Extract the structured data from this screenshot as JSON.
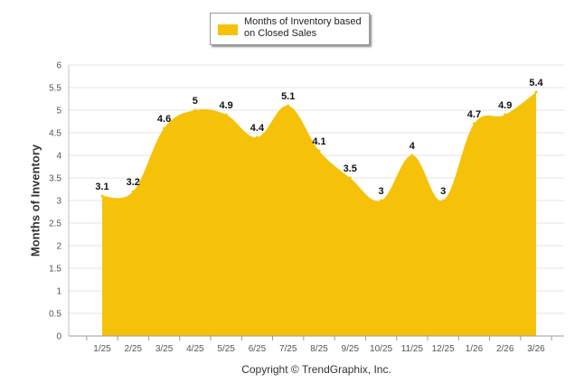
{
  "chart_data": {
    "type": "area",
    "title": "",
    "xlabel": "",
    "ylabel": "Months of Inventory",
    "ylim": [
      0,
      6
    ],
    "yticks": [
      "0",
      "0.5",
      "1",
      "1.5",
      "2",
      "2.5",
      "3",
      "3.5",
      "4",
      "4.5",
      "5",
      "5.5",
      "6"
    ],
    "categories": [
      "1/25",
      "2/25",
      "3/25",
      "4/25",
      "5/25",
      "6/25",
      "7/25",
      "8/25",
      "9/25",
      "10/25",
      "11/25",
      "12/25",
      "1/26",
      "2/26",
      "3/26"
    ],
    "series": [
      {
        "name": "Months of Inventory based on Closed Sales",
        "values": [
          3.1,
          3.2,
          4.6,
          5,
          4.9,
          4.4,
          5.1,
          4.1,
          3.5,
          3,
          4,
          3,
          4.7,
          4.9,
          5.4
        ],
        "labels": [
          "3.1",
          "3.2",
          "4.6",
          "5",
          "4.9",
          "4.4",
          "5.1",
          "4.1",
          "3.5",
          "3",
          "4",
          "3",
          "4.7",
          "4.9",
          "5.4"
        ],
        "color": "#f6c209"
      }
    ],
    "grid": true,
    "legend": "top-center"
  },
  "legend": {
    "label": "Months of Inventory based on Closed Sales",
    "color": "#f6c209"
  },
  "footer": {
    "copyright": "Copyright © TrendGraphix, Inc."
  }
}
